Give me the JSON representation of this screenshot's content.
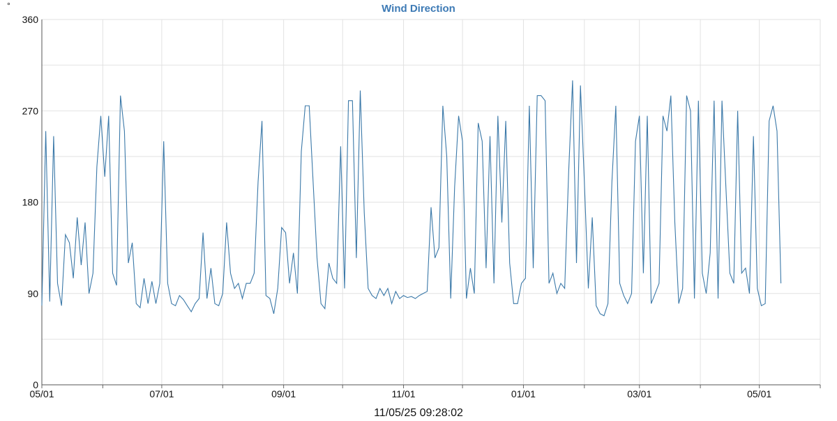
{
  "chart_data": {
    "type": "line",
    "title": "Wind Direction",
    "y_label": "°",
    "x_label": "11/05/25 09:28:02",
    "xlim": [
      0,
      396
    ],
    "xticks": [
      {
        "value": 0,
        "label": "05/01"
      },
      {
        "value": 31,
        "label": null
      },
      {
        "value": 61,
        "label": "07/01"
      },
      {
        "value": 92,
        "label": null
      },
      {
        "value": 123,
        "label": "09/01"
      },
      {
        "value": 153,
        "label": null
      },
      {
        "value": 184,
        "label": "11/01"
      },
      {
        "value": 214,
        "label": null
      },
      {
        "value": 245,
        "label": "01/01"
      },
      {
        "value": 276,
        "label": null
      },
      {
        "value": 304,
        "label": "03/01"
      },
      {
        "value": 335,
        "label": null
      },
      {
        "value": 365,
        "label": "05/01"
      },
      {
        "value": 396,
        "label": null
      }
    ],
    "ylim": [
      0,
      360
    ],
    "yticks": [
      0,
      {
        "value": 45,
        "label": null
      },
      90,
      {
        "value": 135,
        "label": null
      },
      180,
      {
        "value": 225,
        "label": null
      },
      270,
      {
        "value": 315,
        "label": null
      },
      360
    ],
    "grid": true,
    "series": [
      {
        "name": "Wind Direction",
        "color": "#3a78a8",
        "x": [
          0,
          2,
          4,
          6,
          8,
          10,
          12,
          14,
          16,
          18,
          20,
          22,
          24,
          26,
          28,
          30,
          32,
          34,
          36,
          38,
          40,
          42,
          44,
          46,
          48,
          50,
          52,
          54,
          56,
          58,
          60,
          62,
          64,
          66,
          68,
          70,
          72,
          74,
          76,
          78,
          80,
          82,
          84,
          86,
          88,
          90,
          92,
          94,
          96,
          98,
          100,
          102,
          104,
          106,
          108,
          110,
          112,
          114,
          116,
          118,
          120,
          122,
          124,
          126,
          128,
          130,
          132,
          134,
          136,
          138,
          140,
          142,
          144,
          146,
          148,
          150,
          152,
          154,
          156,
          158,
          160,
          162,
          164,
          166,
          168,
          170,
          172,
          174,
          176,
          178,
          180,
          182,
          184,
          186,
          188,
          190,
          192,
          194,
          196,
          198,
          200,
          202,
          204,
          206,
          208,
          210,
          212,
          214,
          216,
          218,
          220,
          222,
          224,
          226,
          228,
          230,
          232,
          234,
          236,
          238,
          240,
          242,
          244,
          246,
          248,
          250,
          252,
          254,
          256,
          258,
          260,
          262,
          264,
          266,
          268,
          270,
          272,
          274,
          276,
          278,
          280,
          282,
          284,
          286,
          288,
          290,
          292,
          294,
          296,
          298,
          300,
          302,
          304,
          306,
          308,
          310,
          312,
          314,
          316,
          318,
          320,
          322,
          324,
          326,
          328,
          330,
          332,
          334,
          336,
          338,
          340,
          342,
          344,
          346,
          348,
          350,
          352,
          354,
          356,
          358,
          360,
          362,
          364,
          366,
          368,
          370,
          372,
          374,
          376
        ],
        "values": [
          78,
          250,
          82,
          245,
          100,
          78,
          148,
          140,
          105,
          165,
          118,
          160,
          90,
          110,
          215,
          265,
          205,
          265,
          110,
          98,
          285,
          250,
          120,
          140,
          80,
          76,
          105,
          80,
          102,
          80,
          100,
          240,
          100,
          80,
          78,
          88,
          84,
          78,
          72,
          80,
          85,
          150,
          85,
          115,
          80,
          78,
          90,
          160,
          110,
          95,
          100,
          85,
          100,
          100,
          110,
          200,
          260,
          88,
          85,
          70,
          95,
          155,
          150,
          100,
          130,
          90,
          230,
          275,
          275,
          200,
          125,
          80,
          75,
          120,
          105,
          100,
          235,
          95,
          280,
          280,
          125,
          290,
          170,
          95,
          88,
          85,
          95,
          88,
          95,
          80,
          92,
          85,
          88,
          86,
          87,
          85,
          88,
          90,
          92,
          175,
          125,
          135,
          275,
          225,
          85,
          195,
          265,
          240,
          85,
          115,
          90,
          258,
          240,
          115,
          245,
          100,
          265,
          160,
          260,
          120,
          80,
          80,
          100,
          105,
          275,
          115,
          285,
          285,
          280,
          100,
          110,
          90,
          100,
          95,
          210,
          300,
          120,
          295,
          200,
          95,
          165,
          78,
          70,
          68,
          80,
          200,
          275,
          100,
          88,
          80,
          90,
          240,
          265,
          110,
          265,
          80,
          90,
          100,
          265,
          250,
          285,
          160,
          80,
          95,
          285,
          270,
          85,
          280,
          110,
          90,
          130,
          280,
          85,
          280,
          195,
          110,
          100,
          270,
          110,
          115,
          90,
          245,
          95,
          78,
          80,
          260,
          275,
          250,
          100
        ]
      }
    ]
  }
}
